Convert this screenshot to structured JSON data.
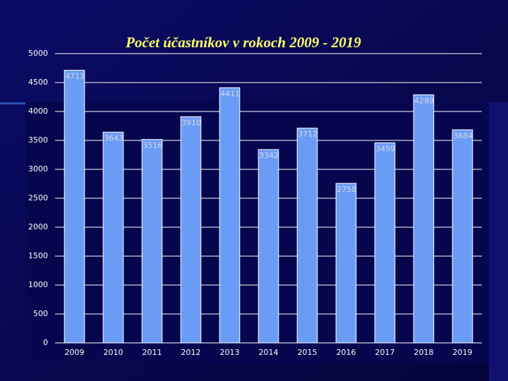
{
  "chart_data": {
    "type": "bar",
    "title": "Počet účastníkov v rokoch 2009 - 2019",
    "categories": [
      "2009",
      "2010",
      "2011",
      "2012",
      "2013",
      "2014",
      "2015",
      "2016",
      "2017",
      "2018",
      "2019"
    ],
    "values": [
      4713,
      3643,
      3516,
      3910,
      4411,
      3342,
      3712,
      2758,
      3459,
      4289,
      3684
    ],
    "color": "#6a9cf5",
    "ylim": [
      0,
      5000
    ],
    "yticks": [
      0,
      500,
      1000,
      1500,
      2000,
      2500,
      3000,
      3500,
      4000,
      4500,
      5000
    ],
    "grid": true
  }
}
